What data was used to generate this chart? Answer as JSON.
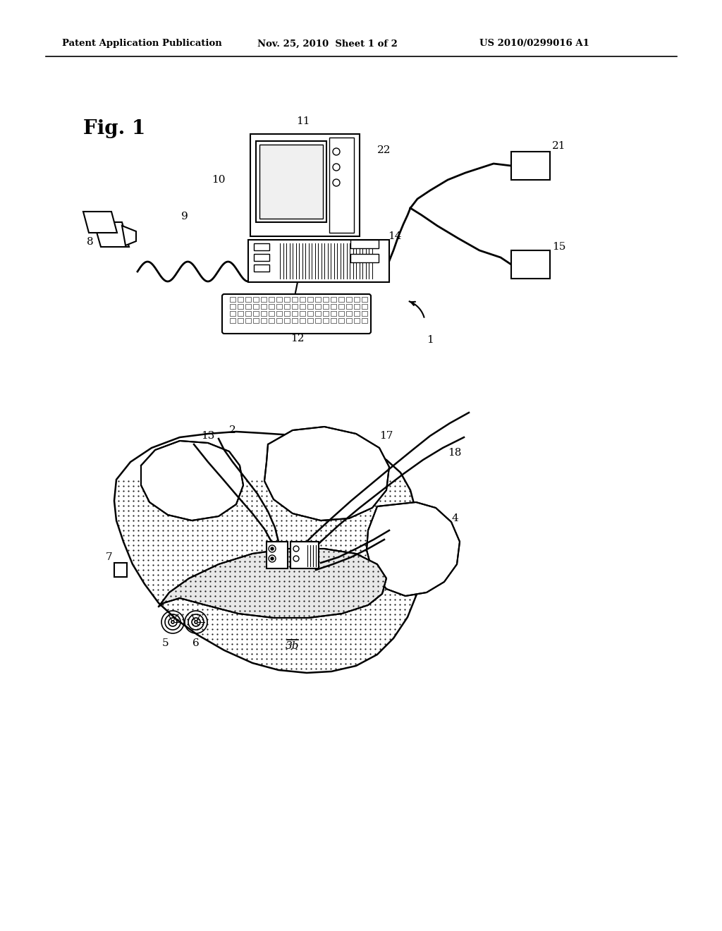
{
  "bg_color": "#ffffff",
  "header_left": "Patent Application Publication",
  "header_mid": "Nov. 25, 2010  Sheet 1 of 2",
  "header_right": "US 2010/0299016 A1",
  "fig_label": "Fig. 1"
}
